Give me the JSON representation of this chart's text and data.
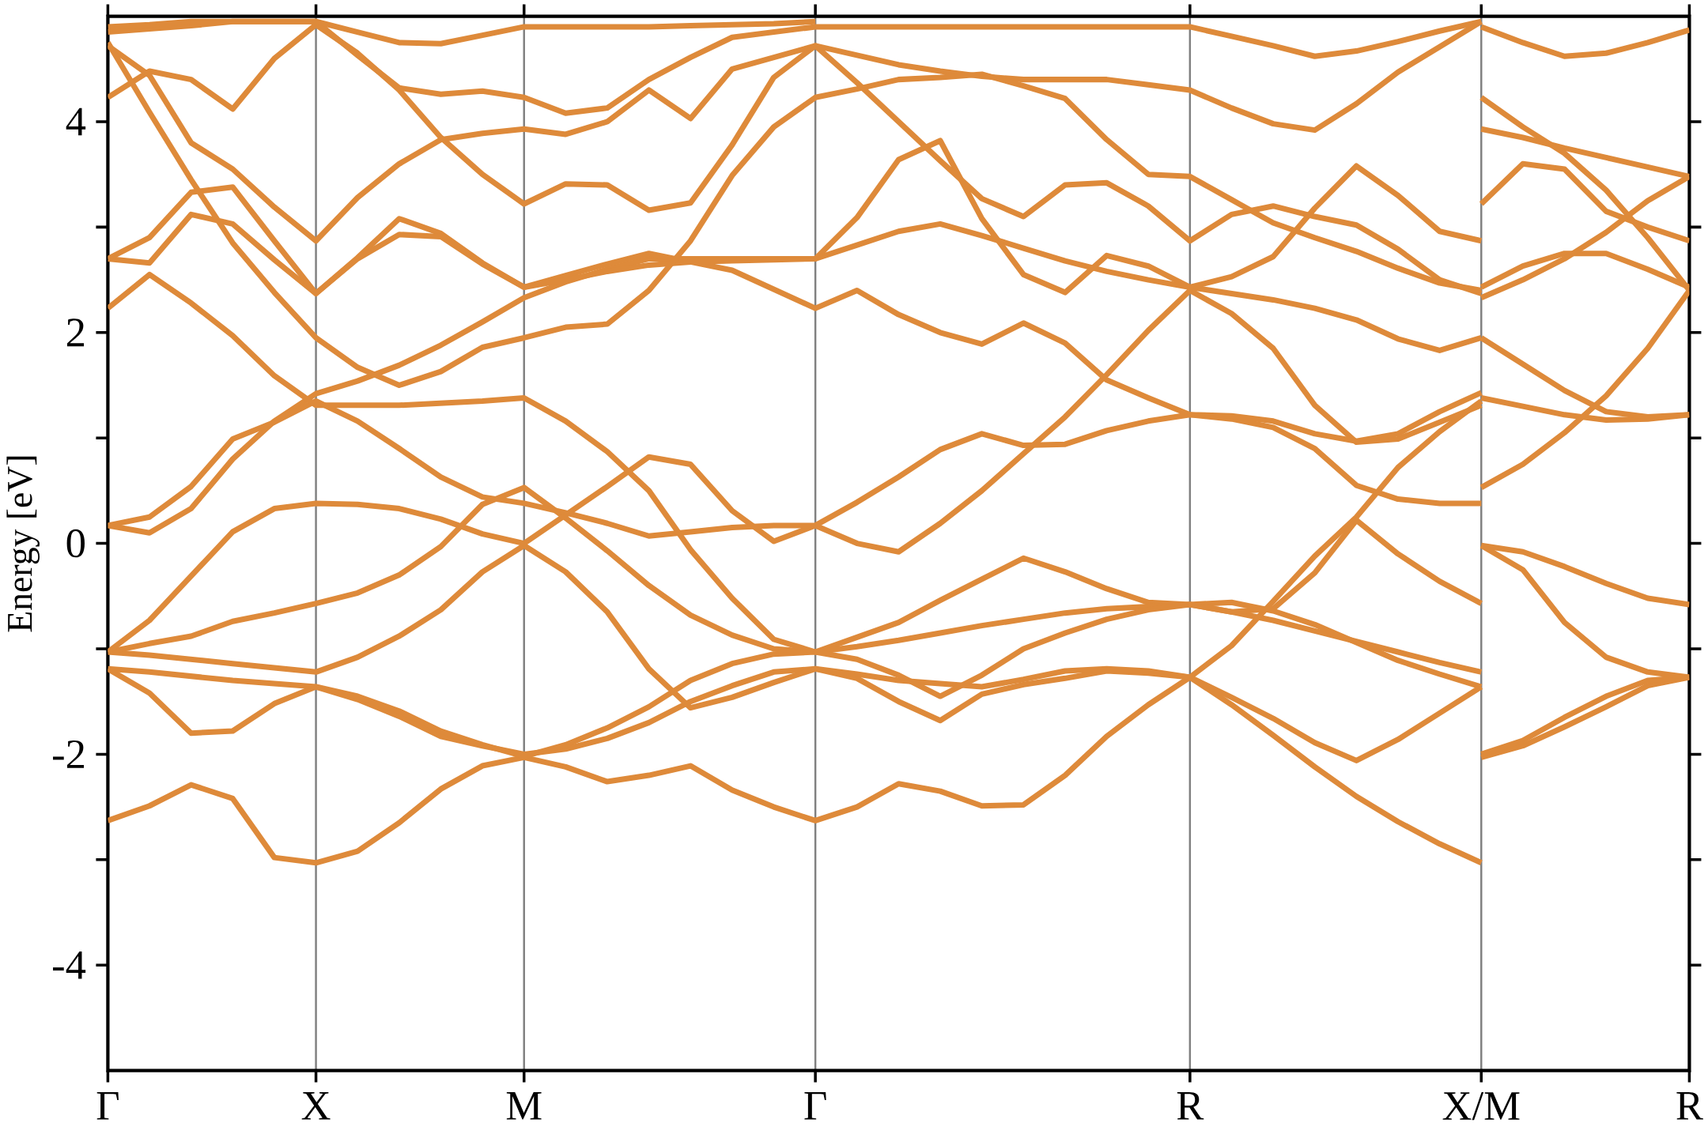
{
  "chart_data": {
    "type": "line",
    "ylabel": "Energy [eV]",
    "ylim": [
      -5,
      5
    ],
    "grid": "x",
    "categories": [
      "Γ",
      null,
      null,
      null,
      null,
      "X",
      null,
      null,
      null,
      null,
      "M",
      null,
      null,
      null,
      null,
      null,
      null,
      "Γ",
      null,
      null,
      null,
      null,
      null,
      null,
      null,
      null,
      "R",
      null,
      null,
      null,
      null,
      null,
      null,
      "X/M",
      null,
      null,
      null,
      null,
      "R"
    ],
    "yticks": [
      -4,
      {
        "value": -3,
        "label": null
      },
      -2,
      {
        "value": -1,
        "label": null
      },
      0,
      {
        "value": 1,
        "label": null
      },
      2,
      {
        "value": 3,
        "label": null
      },
      4
    ],
    "series": [
      {
        "color": "#de8a3a",
        "values": [
          -2.63,
          -2.49,
          -2.29,
          -2.42,
          -2.98,
          -3.03,
          -2.92,
          -2.65,
          -2.33,
          -2.11,
          -2.03,
          -2.12,
          -2.26,
          -2.2,
          -2.11,
          -2.34,
          -2.5,
          -2.63,
          -2.5,
          -2.28,
          -2.35,
          -2.49,
          -2.48,
          -2.2,
          -1.83,
          -1.53,
          -1.27,
          -1.53,
          -1.82,
          -2.12,
          -2.4,
          -2.64,
          -2.85,
          -3.03,
          null,
          null,
          null,
          null,
          null
        ]
      },
      {
        "color": "#de8a3a",
        "values": [
          -1.19,
          -1.42,
          -1.8,
          -1.78,
          -1.52,
          -1.36,
          -1.48,
          -1.64,
          -1.83,
          -1.92,
          -2.0,
          -1.95,
          -1.85,
          -1.7,
          -1.5,
          -1.35,
          -1.22,
          -1.19,
          -1.28,
          -1.5,
          -1.68,
          -1.43,
          -1.34,
          -1.28,
          -1.21,
          -1.23,
          -1.27,
          -1.46,
          -1.66,
          -1.89,
          -2.06,
          -1.86,
          -1.61,
          -1.36,
          null,
          null,
          null,
          null,
          null
        ]
      },
      {
        "color": "#de8a3a",
        "values": [
          -1.19,
          -1.22,
          -1.26,
          -1.3,
          -1.33,
          -1.36,
          -1.45,
          -1.59,
          -1.78,
          -1.91,
          -2.02,
          -1.91,
          -1.75,
          -1.55,
          -1.3,
          -1.14,
          -1.05,
          -1.03,
          -0.89,
          -0.75,
          -0.54,
          -0.34,
          -0.14,
          -0.27,
          -0.43,
          -0.56,
          -0.58,
          -0.65,
          -0.73,
          -0.83,
          -0.93,
          -1.03,
          -1.13,
          -1.22,
          null,
          null,
          null,
          null,
          null
        ]
      },
      {
        "color": "#de8a3a",
        "values": [
          -1.03,
          -1.06,
          -1.1,
          -1.14,
          -1.18,
          -1.22,
          -1.08,
          -0.88,
          -0.63,
          -0.27,
          -0.02,
          -0.27,
          -0.65,
          -1.19,
          -1.56,
          -1.46,
          -1.32,
          -1.19,
          -1.24,
          -1.3,
          -1.33,
          -1.36,
          -1.29,
          -1.21,
          -1.19,
          -1.21,
          -1.27,
          -0.97,
          -0.55,
          -0.12,
          0.25,
          0.72,
          1.06,
          1.35,
          null,
          null,
          null,
          null,
          null
        ]
      },
      {
        "color": "#de8a3a",
        "values": [
          -1.03,
          -0.95,
          -0.88,
          -0.74,
          -0.66,
          -0.57,
          -0.47,
          -0.3,
          -0.03,
          0.37,
          0.53,
          0.24,
          -0.07,
          -0.4,
          -0.68,
          -0.87,
          -1.0,
          -1.03,
          -0.98,
          -0.92,
          -0.85,
          -0.78,
          -0.72,
          -0.66,
          -0.62,
          -0.6,
          -0.58,
          -0.56,
          -0.64,
          -0.77,
          -0.94,
          -1.11,
          -1.24,
          -1.36,
          null,
          null,
          null,
          null,
          null
        ]
      },
      {
        "color": "#de8a3a",
        "values": [
          -1.03,
          -0.73,
          -0.31,
          0.11,
          0.33,
          0.38,
          0.37,
          0.33,
          0.23,
          0.09,
          0.0,
          0.27,
          0.54,
          0.82,
          0.75,
          0.31,
          0.02,
          0.17,
          0.0,
          -0.08,
          0.19,
          0.5,
          0.85,
          1.2,
          1.6,
          2.02,
          2.4,
          2.18,
          1.85,
          1.31,
          0.96,
          0.99,
          1.15,
          1.31,
          null,
          null,
          null,
          null,
          null
        ]
      },
      {
        "color": "#de8a3a",
        "values": [
          0.17,
          0.1,
          0.33,
          0.8,
          1.16,
          1.42,
          1.54,
          1.69,
          1.88,
          2.1,
          2.33,
          2.48,
          2.6,
          2.7,
          2.7,
          2.7,
          2.7,
          2.7,
          2.83,
          2.96,
          3.03,
          2.92,
          2.8,
          2.68,
          2.58,
          2.5,
          2.43,
          2.37,
          2.31,
          2.23,
          2.12,
          1.94,
          1.83,
          1.95,
          null,
          null,
          null,
          null,
          null
        ]
      },
      {
        "color": "#de8a3a",
        "values": [
          0.17,
          0.25,
          0.54,
          0.99,
          1.15,
          1.35,
          1.16,
          0.9,
          0.63,
          0.44,
          0.38,
          0.29,
          0.19,
          0.07,
          0.11,
          0.15,
          0.17,
          0.17,
          0.39,
          0.63,
          0.89,
          1.04,
          0.93,
          0.94,
          1.07,
          1.16,
          1.22,
          1.18,
          1.1,
          0.9,
          0.55,
          0.42,
          0.38,
          0.38,
          null,
          null,
          null,
          null,
          null
        ]
      },
      {
        "color": "#de8a3a",
        "values": [
          2.23,
          2.55,
          2.28,
          1.97,
          1.59,
          1.31,
          1.31,
          1.31,
          1.33,
          1.35,
          1.38,
          1.16,
          0.87,
          0.5,
          -0.06,
          -0.52,
          -0.91,
          -1.03,
          -1.1,
          -1.25,
          -1.45,
          -1.25,
          -1.0,
          -0.85,
          -0.72,
          -0.63,
          -0.58,
          -0.65,
          -0.62,
          -0.28,
          0.22,
          -0.1,
          -0.36,
          -0.57,
          null,
          null,
          null,
          null,
          null
        ]
      },
      {
        "color": "#de8a3a",
        "values": [
          2.7,
          2.66,
          3.12,
          3.03,
          2.69,
          2.37,
          2.71,
          3.08,
          2.94,
          2.66,
          2.43,
          2.54,
          2.65,
          2.75,
          2.67,
          2.59,
          2.41,
          2.23,
          2.4,
          2.17,
          2.0,
          1.89,
          2.09,
          1.9,
          1.55,
          1.38,
          1.22,
          1.21,
          1.16,
          1.04,
          0.97,
          1.04,
          1.25,
          1.43,
          null,
          null,
          null,
          null,
          null
        ]
      },
      {
        "color": "#de8a3a",
        "values": [
          2.7,
          2.9,
          3.33,
          3.38,
          2.87,
          2.37,
          2.7,
          2.93,
          2.91,
          2.65,
          2.43,
          2.5,
          2.58,
          2.64,
          2.67,
          2.68,
          2.69,
          2.7,
          3.09,
          3.64,
          3.82,
          3.08,
          2.55,
          2.38,
          2.73,
          2.63,
          2.43,
          2.53,
          2.72,
          3.18,
          3.58,
          3.3,
          2.96,
          2.87,
          null,
          null,
          null,
          null,
          null
        ]
      },
      {
        "color": "#de8a3a",
        "values": [
          4.23,
          4.48,
          4.4,
          4.12,
          4.6,
          4.92,
          4.65,
          4.3,
          3.85,
          3.5,
          3.22,
          3.41,
          3.4,
          3.16,
          3.23,
          3.78,
          4.42,
          4.72,
          4.37,
          4.0,
          3.63,
          3.27,
          3.1,
          3.4,
          3.42,
          3.2,
          2.87,
          3.12,
          3.2,
          3.1,
          3.02,
          2.79,
          2.5,
          2.37,
          null,
          null,
          null,
          null,
          null
        ]
      },
      {
        "color": "#de8a3a",
        "values": [
          4.72,
          4.44,
          3.8,
          3.55,
          3.19,
          2.87,
          3.28,
          3.6,
          3.83,
          3.89,
          3.93,
          3.88,
          4.0,
          4.3,
          4.03,
          4.5,
          4.61,
          4.72,
          4.63,
          4.54,
          4.48,
          4.43,
          4.4,
          4.4,
          4.4,
          4.35,
          4.3,
          4.13,
          3.98,
          3.92,
          4.17,
          4.47,
          4.71,
          4.95,
          null,
          null,
          null,
          null,
          null
        ]
      },
      {
        "color": "#de8a3a",
        "values": [
          4.85,
          4.88,
          4.91,
          4.95,
          4.95,
          4.95,
          4.63,
          4.32,
          4.26,
          4.29,
          4.23,
          4.08,
          4.13,
          4.4,
          4.61,
          4.8,
          4.85,
          4.9,
          4.9,
          4.9,
          4.9,
          4.9,
          4.9,
          4.9,
          4.9,
          4.9,
          4.9,
          4.81,
          4.72,
          4.62,
          4.67,
          4.76,
          4.86,
          4.95,
          null,
          null,
          null,
          null,
          null
        ]
      },
      {
        "color": "#de8a3a",
        "values": [
          4.75,
          4.09,
          3.45,
          2.85,
          2.38,
          1.95,
          1.67,
          1.5,
          1.63,
          1.86,
          1.95,
          2.05,
          2.08,
          2.4,
          2.87,
          3.49,
          3.95,
          4.23,
          4.31,
          4.4,
          4.42,
          4.45,
          4.34,
          4.22,
          3.83,
          3.5,
          3.48,
          3.26,
          3.04,
          2.9,
          2.77,
          2.61,
          2.47,
          2.4,
          null,
          null,
          null,
          null,
          null
        ]
      },
      {
        "color": "#de8a3a",
        "values": [
          4.9,
          4.92,
          4.95,
          4.95,
          4.95,
          4.95,
          4.85,
          4.75,
          4.74,
          4.82,
          4.9,
          4.9,
          4.9,
          4.9,
          4.91,
          4.92,
          4.93,
          4.95,
          null,
          null,
          null,
          null,
          null,
          null,
          null,
          null,
          null,
          null,
          null,
          null,
          null,
          null,
          null,
          null,
          null,
          null,
          null,
          null,
          null
        ]
      },
      {
        "color": "#de8a3a",
        "values": [
          null,
          null,
          null,
          null,
          null,
          null,
          null,
          null,
          null,
          null,
          null,
          null,
          null,
          null,
          null,
          null,
          null,
          null,
          null,
          null,
          null,
          null,
          null,
          null,
          null,
          null,
          null,
          null,
          null,
          null,
          null,
          null,
          null,
          -2.03,
          -1.92,
          -1.74,
          -1.55,
          -1.35,
          -1.27
        ]
      },
      {
        "color": "#de8a3a",
        "values": [
          null,
          null,
          null,
          null,
          null,
          null,
          null,
          null,
          null,
          null,
          null,
          null,
          null,
          null,
          null,
          null,
          null,
          null,
          null,
          null,
          null,
          null,
          null,
          null,
          null,
          null,
          null,
          null,
          null,
          null,
          null,
          null,
          null,
          -2.0,
          -1.87,
          -1.65,
          -1.45,
          -1.3,
          -1.27
        ]
      },
      {
        "color": "#de8a3a",
        "values": [
          null,
          null,
          null,
          null,
          null,
          null,
          null,
          null,
          null,
          null,
          null,
          null,
          null,
          null,
          null,
          null,
          null,
          null,
          null,
          null,
          null,
          null,
          null,
          null,
          null,
          null,
          null,
          null,
          null,
          null,
          null,
          null,
          null,
          -0.02,
          -0.08,
          -0.22,
          -0.38,
          -0.52,
          -0.58
        ]
      },
      {
        "color": "#de8a3a",
        "values": [
          null,
          null,
          null,
          null,
          null,
          null,
          null,
          null,
          null,
          null,
          null,
          null,
          null,
          null,
          null,
          null,
          null,
          null,
          null,
          null,
          null,
          null,
          null,
          null,
          null,
          null,
          null,
          null,
          null,
          null,
          null,
          null,
          null,
          -0.02,
          -0.25,
          -0.75,
          -1.08,
          -1.22,
          -1.27
        ]
      },
      {
        "color": "#de8a3a",
        "values": [
          null,
          null,
          null,
          null,
          null,
          null,
          null,
          null,
          null,
          null,
          null,
          null,
          null,
          null,
          null,
          null,
          null,
          null,
          null,
          null,
          null,
          null,
          null,
          null,
          null,
          null,
          null,
          null,
          null,
          null,
          null,
          null,
          null,
          0.53,
          0.75,
          1.05,
          1.4,
          1.85,
          2.4
        ]
      },
      {
        "color": "#de8a3a",
        "values": [
          null,
          null,
          null,
          null,
          null,
          null,
          null,
          null,
          null,
          null,
          null,
          null,
          null,
          null,
          null,
          null,
          null,
          null,
          null,
          null,
          null,
          null,
          null,
          null,
          null,
          null,
          null,
          null,
          null,
          null,
          null,
          null,
          null,
          1.38,
          1.3,
          1.22,
          1.17,
          1.18,
          1.22
        ]
      },
      {
        "color": "#de8a3a",
        "values": [
          null,
          null,
          null,
          null,
          null,
          null,
          null,
          null,
          null,
          null,
          null,
          null,
          null,
          null,
          null,
          null,
          null,
          null,
          null,
          null,
          null,
          null,
          null,
          null,
          null,
          null,
          null,
          null,
          null,
          null,
          null,
          null,
          null,
          1.95,
          1.7,
          1.45,
          1.25,
          1.2,
          1.22
        ]
      },
      {
        "color": "#de8a3a",
        "values": [
          null,
          null,
          null,
          null,
          null,
          null,
          null,
          null,
          null,
          null,
          null,
          null,
          null,
          null,
          null,
          null,
          null,
          null,
          null,
          null,
          null,
          null,
          null,
          null,
          null,
          null,
          null,
          null,
          null,
          null,
          null,
          null,
          null,
          2.43,
          2.63,
          2.75,
          2.75,
          2.6,
          2.43
        ]
      },
      {
        "color": "#de8a3a",
        "values": [
          null,
          null,
          null,
          null,
          null,
          null,
          null,
          null,
          null,
          null,
          null,
          null,
          null,
          null,
          null,
          null,
          null,
          null,
          null,
          null,
          null,
          null,
          null,
          null,
          null,
          null,
          null,
          null,
          null,
          null,
          null,
          null,
          null,
          2.33,
          2.5,
          2.7,
          2.95,
          3.25,
          3.48
        ]
      },
      {
        "color": "#de8a3a",
        "values": [
          null,
          null,
          null,
          null,
          null,
          null,
          null,
          null,
          null,
          null,
          null,
          null,
          null,
          null,
          null,
          null,
          null,
          null,
          null,
          null,
          null,
          null,
          null,
          null,
          null,
          null,
          null,
          null,
          null,
          null,
          null,
          null,
          null,
          3.22,
          3.6,
          3.55,
          3.15,
          3.0,
          2.87
        ]
      },
      {
        "color": "#de8a3a",
        "values": [
          null,
          null,
          null,
          null,
          null,
          null,
          null,
          null,
          null,
          null,
          null,
          null,
          null,
          null,
          null,
          null,
          null,
          null,
          null,
          null,
          null,
          null,
          null,
          null,
          null,
          null,
          null,
          null,
          null,
          null,
          null,
          null,
          null,
          3.93,
          3.85,
          3.75,
          3.66,
          3.57,
          3.48
        ]
      },
      {
        "color": "#de8a3a",
        "values": [
          null,
          null,
          null,
          null,
          null,
          null,
          null,
          null,
          null,
          null,
          null,
          null,
          null,
          null,
          null,
          null,
          null,
          null,
          null,
          null,
          null,
          null,
          null,
          null,
          null,
          null,
          null,
          null,
          null,
          null,
          null,
          null,
          null,
          4.23,
          3.95,
          3.7,
          3.35,
          2.9,
          2.4
        ]
      },
      {
        "color": "#de8a3a",
        "values": [
          null,
          null,
          null,
          null,
          null,
          null,
          null,
          null,
          null,
          null,
          null,
          null,
          null,
          null,
          null,
          null,
          null,
          null,
          null,
          null,
          null,
          null,
          null,
          null,
          null,
          null,
          null,
          null,
          null,
          null,
          null,
          null,
          null,
          4.9,
          4.75,
          4.62,
          4.65,
          4.75,
          4.87
        ]
      }
    ]
  }
}
